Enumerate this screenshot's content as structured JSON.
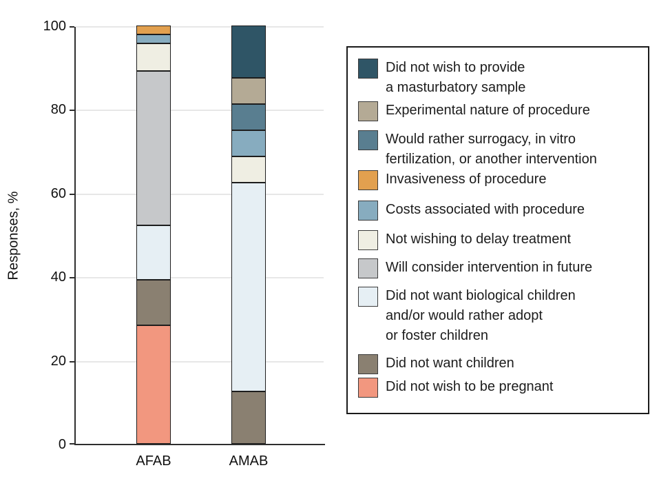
{
  "chart_data": {
    "type": "bar",
    "stacked": true,
    "title": "",
    "xlabel": "",
    "ylabel": "Responses, %",
    "ylim": [
      0,
      100
    ],
    "yticks": [
      0,
      20,
      40,
      60,
      80,
      100
    ],
    "grid": "horizontal",
    "legend_position": "right",
    "categories": [
      "AFAB",
      "AMAB"
    ],
    "series": [
      {
        "name": "Did not wish to be pregnant",
        "color": "#F2977F",
        "values": [
          28.3,
          0
        ]
      },
      {
        "name": "Did not want children",
        "color": "#8A8071",
        "values": [
          10.9,
          12.5
        ]
      },
      {
        "name": "Did not want biological children and/or would rather adopt or foster children",
        "color": "#E6EFF4",
        "values": [
          13.0,
          50.0
        ]
      },
      {
        "name": "Will consider intervention in future",
        "color": "#C6C8CA",
        "values": [
          37.0,
          0
        ]
      },
      {
        "name": "Not wishing to delay treatment",
        "color": "#EFEEE3",
        "values": [
          6.5,
          6.25
        ]
      },
      {
        "name": "Costs associated with procedure",
        "color": "#87ACBF",
        "values": [
          2.2,
          6.25
        ]
      },
      {
        "name": "Would rather surrogacy, in vitro fertilization, or another intervention",
        "color": "#597E90",
        "values": [
          0,
          6.25
        ]
      },
      {
        "name": "Experimental nature of procedure",
        "color": "#B4AA95",
        "values": [
          0,
          6.25
        ]
      },
      {
        "name": "Invasiveness of procedure",
        "color": "#E2A04F",
        "values": [
          2.1,
          0
        ]
      },
      {
        "name": "Did not wish to provide a masturbatory sample",
        "color": "#2F5566",
        "values": [
          0,
          12.5
        ]
      }
    ]
  },
  "legend": {
    "items": [
      {
        "label": "Did not wish to provide\na masturbatory sample",
        "color": "#2F5566"
      },
      {
        "label": "Experimental nature of procedure",
        "color": "#B4AA95"
      },
      {
        "label": "Would rather surrogacy, in vitro\nfertilization, or another intervention",
        "color": "#597E90"
      },
      {
        "label": "Invasiveness of procedure",
        "color": "#E2A04F"
      },
      {
        "label": "Costs associated with procedure",
        "color": "#87ACBF"
      },
      {
        "label": "Not wishing to delay treatment",
        "color": "#EFEEE3"
      },
      {
        "label": "Will consider intervention in future",
        "color": "#C6C8CA"
      },
      {
        "label": "Did not want biological children\nand/or would rather adopt\nor foster children",
        "color": "#E6EFF4"
      },
      {
        "label": "Did not want children",
        "color": "#8A8071"
      },
      {
        "label": "Did not wish to be pregnant",
        "color": "#F2977F"
      }
    ]
  },
  "colors": {
    "axis": "#2e2e2e",
    "gridline": "#e7e7e7",
    "segment_border": "#1d1d1d",
    "text": "#111111"
  }
}
